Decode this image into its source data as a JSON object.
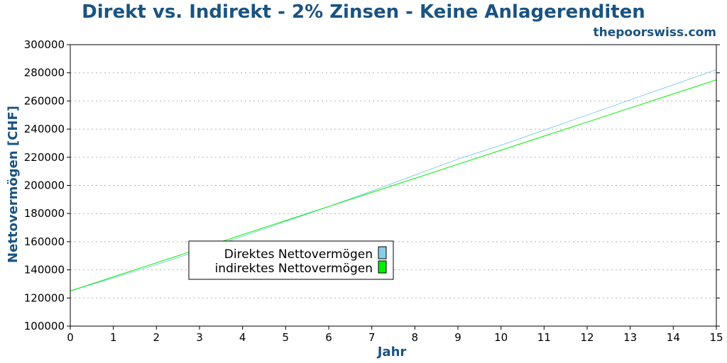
{
  "chart_data": {
    "type": "line",
    "title": "Direkt vs. Indirekt - 2% Zinsen - Keine Anlagerenditen",
    "source": "thepoorswiss.com",
    "xlabel": "Jahr",
    "ylabel": "Nettovermögen [CHF]",
    "xlim": [
      0,
      15
    ],
    "ylim": [
      100000,
      300000
    ],
    "x_ticks": [
      "0",
      "1",
      "2",
      "3",
      "4",
      "5",
      "6",
      "7",
      "8",
      "9",
      "10",
      "11",
      "12",
      "13",
      "14",
      "15"
    ],
    "y_ticks": [
      "100000",
      "120000",
      "140000",
      "160000",
      "180000",
      "200000",
      "220000",
      "240000",
      "260000",
      "280000",
      "300000"
    ],
    "grid": true,
    "legend_position": "lower-left",
    "x": [
      0,
      1,
      2,
      3,
      4,
      5,
      6,
      7,
      8,
      9,
      10,
      11,
      12,
      13,
      14,
      15
    ],
    "series": [
      {
        "name": "Direktes Nettovermögen",
        "color": "#87ceeb",
        "values": [
          125000,
          134200,
          143800,
          153600,
          163800,
          174300,
          185000,
          196000,
          207300,
          218700,
          228500,
          239300,
          250000,
          260800,
          271500,
          282200
        ]
      },
      {
        "name": "indirektes Nettovermögen",
        "color": "#00ee00",
        "values": [
          125000,
          135000,
          145000,
          155000,
          165000,
          175000,
          185000,
          195000,
          205000,
          215000,
          225000,
          235000,
          245000,
          255000,
          265000,
          275000
        ]
      }
    ]
  }
}
